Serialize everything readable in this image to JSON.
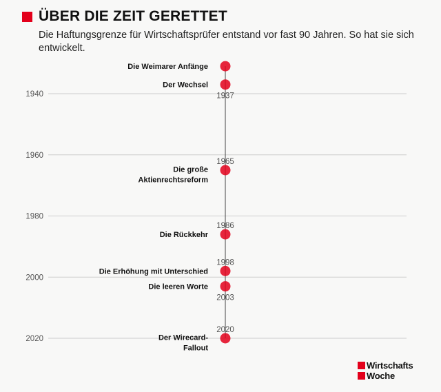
{
  "header": {
    "title": "ÜBER DIE ZEIT GERETTET",
    "subtitle": "Die Haftungsgrenze für Wirtschaftsprüfer entstand vor fast 90 Jahren. So hat sie sich entwickelt."
  },
  "chart_data": {
    "type": "scatter",
    "title": "ÜBER DIE ZEIT GERETTET",
    "subtitle": "Die Haftungsgrenze für Wirtschaftsprüfer entstand vor fast 90 Jahren. So hat sie sich entwickelt.",
    "xlabel": "",
    "ylabel": "",
    "y_ticks": [
      1940,
      1960,
      1980,
      2000,
      2020
    ],
    "ylim": [
      1926,
      2022
    ],
    "grid": true,
    "events": [
      {
        "label": "Die Weimarer Anfänge",
        "year": 1931,
        "year_label": ""
      },
      {
        "label": "Der Wechsel",
        "year": 1937,
        "year_label": "1937"
      },
      {
        "label": "Die große Aktienrechtsreform",
        "label_lines": [
          "Die große",
          "Aktienrechtsreform"
        ],
        "year": 1965,
        "year_label": "1965"
      },
      {
        "label": "Die Rückkehr",
        "year": 1986,
        "year_label": "1986"
      },
      {
        "label": "Die Erhöhung mit Unterschied",
        "year": 1998,
        "year_label": "1998"
      },
      {
        "label": "Die leeren Worte",
        "year": 2003,
        "year_label": "2003"
      },
      {
        "label": "Der Wirecard-Fallout",
        "label_lines": [
          "Der Wirecard-",
          "Fallout"
        ],
        "year": 2020,
        "year_label": "2020"
      }
    ],
    "colors": {
      "point": "#e3001b",
      "axis": "#444444",
      "grid": "#cccccc",
      "tick": "#555555"
    }
  },
  "logo": {
    "line1": "Wirtschafts",
    "line2": "Woche"
  }
}
